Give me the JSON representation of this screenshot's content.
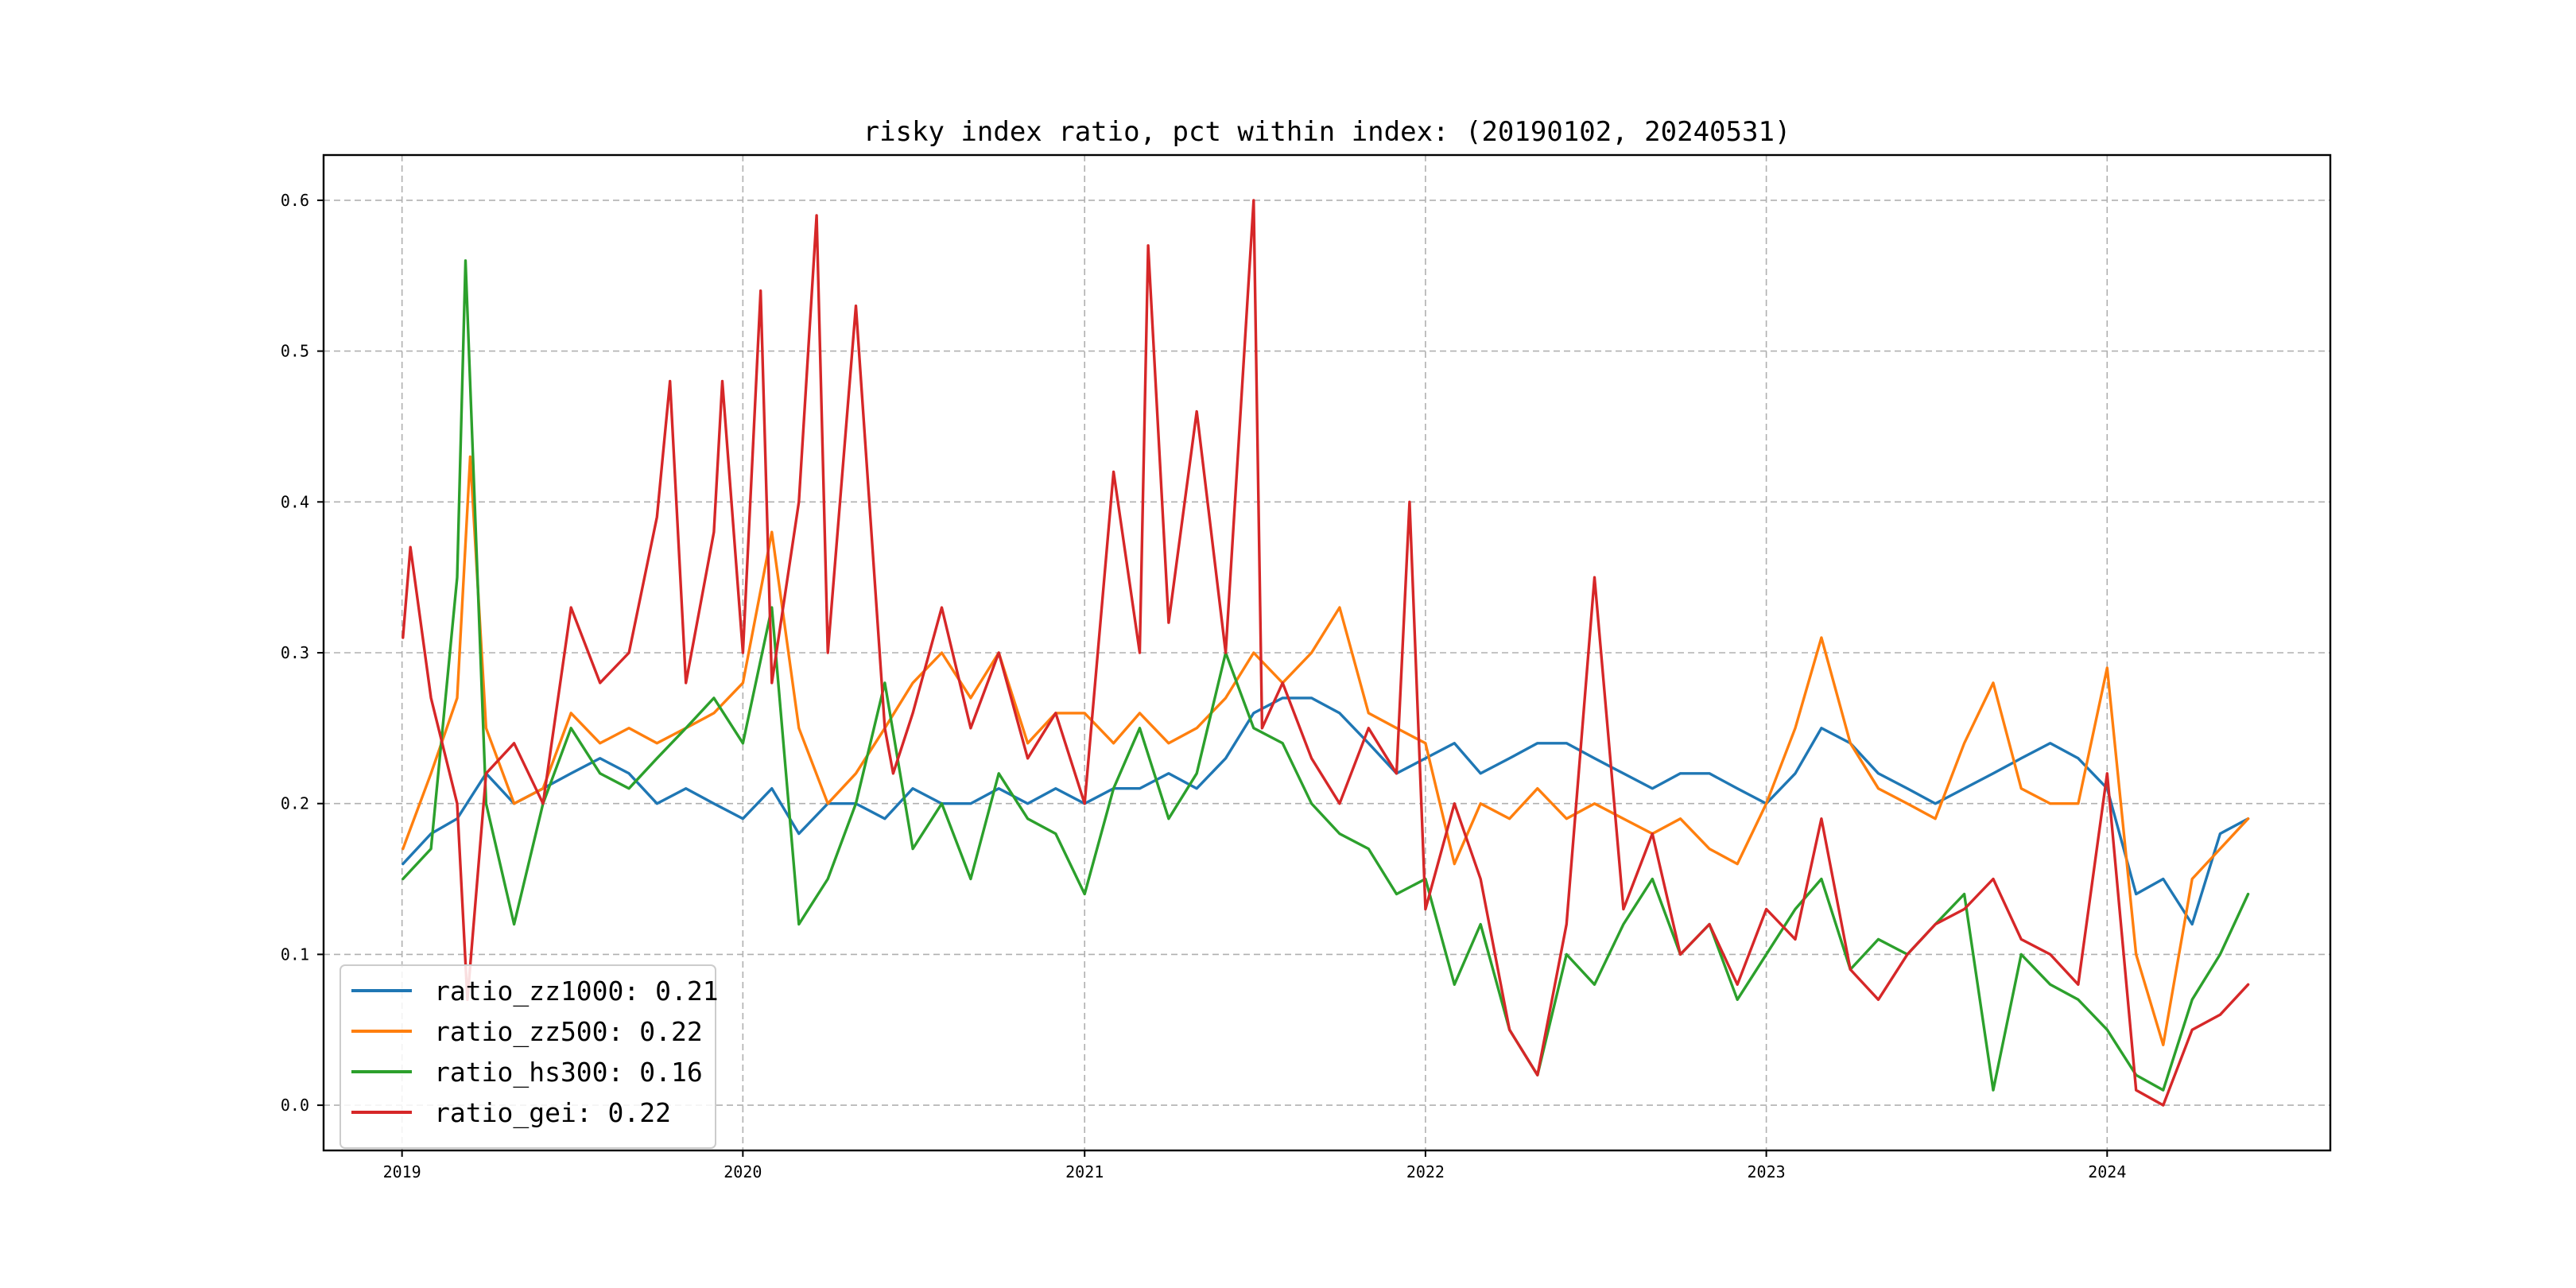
{
  "chart_data": {
    "type": "line",
    "title": "risky index ratio, pct within index: (20190102, 20240531)",
    "xlabel": "",
    "ylabel": "",
    "x_range": [
      "2019-01-02",
      "2024-05-31"
    ],
    "xlim": [
      "2018-10-09",
      "2024-08-27"
    ],
    "ylim": [
      -0.03,
      0.63
    ],
    "x_ticks": [
      {
        "date": "2019-01-01",
        "label": "2019"
      },
      {
        "date": "2020-01-01",
        "label": "2020"
      },
      {
        "date": "2021-01-01",
        "label": "2021"
      },
      {
        "date": "2022-01-01",
        "label": "2022"
      },
      {
        "date": "2023-01-01",
        "label": "2023"
      },
      {
        "date": "2024-01-01",
        "label": "2024"
      }
    ],
    "y_ticks": [
      {
        "value": 0.0,
        "label": "0.0"
      },
      {
        "value": 0.1,
        "label": "0.1"
      },
      {
        "value": 0.2,
        "label": "0.2"
      },
      {
        "value": 0.3,
        "label": "0.3"
      },
      {
        "value": 0.4,
        "label": "0.4"
      },
      {
        "value": 0.5,
        "label": "0.5"
      },
      {
        "value": 0.6,
        "label": "0.6"
      }
    ],
    "grid": true,
    "legend_position": "lower-left",
    "series": [
      {
        "name": "ratio_zz1000: 0.21",
        "color": "#1f77b4",
        "x": [
          "2019-01-02",
          "2019-02-01",
          "2019-03-01",
          "2019-04-01",
          "2019-05-01",
          "2019-06-01",
          "2019-07-01",
          "2019-08-01",
          "2019-09-01",
          "2019-10-01",
          "2019-11-01",
          "2019-12-01",
          "2020-01-01",
          "2020-02-01",
          "2020-03-01",
          "2020-04-01",
          "2020-05-01",
          "2020-06-01",
          "2020-07-01",
          "2020-08-01",
          "2020-09-01",
          "2020-10-01",
          "2020-11-01",
          "2020-12-01",
          "2021-01-01",
          "2021-02-01",
          "2021-03-01",
          "2021-04-01",
          "2021-05-01",
          "2021-06-01",
          "2021-07-01",
          "2021-08-01",
          "2021-09-01",
          "2021-10-01",
          "2021-11-01",
          "2021-12-01",
          "2022-01-01",
          "2022-02-01",
          "2022-03-01",
          "2022-04-01",
          "2022-05-01",
          "2022-06-01",
          "2022-07-01",
          "2022-08-01",
          "2022-09-01",
          "2022-10-01",
          "2022-11-01",
          "2022-12-01",
          "2023-01-01",
          "2023-02-01",
          "2023-03-01",
          "2023-04-01",
          "2023-05-01",
          "2023-06-01",
          "2023-07-01",
          "2023-08-01",
          "2023-09-01",
          "2023-10-01",
          "2023-11-01",
          "2023-12-01",
          "2024-01-01",
          "2024-02-01",
          "2024-03-01",
          "2024-04-01",
          "2024-05-01",
          "2024-05-31"
        ],
        "values": [
          0.16,
          0.18,
          0.19,
          0.22,
          0.2,
          0.21,
          0.22,
          0.23,
          0.22,
          0.2,
          0.21,
          0.2,
          0.19,
          0.21,
          0.18,
          0.2,
          0.2,
          0.19,
          0.21,
          0.2,
          0.2,
          0.21,
          0.2,
          0.21,
          0.2,
          0.21,
          0.21,
          0.22,
          0.21,
          0.23,
          0.26,
          0.27,
          0.27,
          0.26,
          0.24,
          0.22,
          0.23,
          0.24,
          0.22,
          0.23,
          0.24,
          0.24,
          0.23,
          0.22,
          0.21,
          0.22,
          0.22,
          0.21,
          0.2,
          0.22,
          0.25,
          0.24,
          0.22,
          0.21,
          0.2,
          0.21,
          0.22,
          0.23,
          0.24,
          0.23,
          0.21,
          0.14,
          0.15,
          0.12,
          0.18,
          0.19
        ]
      },
      {
        "name": "ratio_zz500: 0.22",
        "color": "#ff7f0e",
        "x": [
          "2019-01-02",
          "2019-02-01",
          "2019-03-01",
          "2019-03-15",
          "2019-04-01",
          "2019-05-01",
          "2019-06-01",
          "2019-07-01",
          "2019-08-01",
          "2019-09-01",
          "2019-10-01",
          "2019-11-01",
          "2019-12-01",
          "2020-01-01",
          "2020-02-01",
          "2020-03-01",
          "2020-04-01",
          "2020-05-01",
          "2020-06-01",
          "2020-07-01",
          "2020-08-01",
          "2020-09-01",
          "2020-10-01",
          "2020-11-01",
          "2020-12-01",
          "2021-01-01",
          "2021-02-01",
          "2021-03-01",
          "2021-04-01",
          "2021-05-01",
          "2021-06-01",
          "2021-07-01",
          "2021-08-01",
          "2021-09-01",
          "2021-10-01",
          "2021-11-01",
          "2021-12-01",
          "2022-01-01",
          "2022-02-01",
          "2022-03-01",
          "2022-04-01",
          "2022-05-01",
          "2022-06-01",
          "2022-07-01",
          "2022-08-01",
          "2022-09-01",
          "2022-10-01",
          "2022-11-01",
          "2022-12-01",
          "2023-01-01",
          "2023-02-01",
          "2023-03-01",
          "2023-04-01",
          "2023-05-01",
          "2023-06-01",
          "2023-07-01",
          "2023-08-01",
          "2023-09-01",
          "2023-10-01",
          "2023-11-01",
          "2023-12-01",
          "2024-01-01",
          "2024-02-01",
          "2024-03-01",
          "2024-04-01",
          "2024-05-01",
          "2024-05-31"
        ],
        "values": [
          0.17,
          0.22,
          0.27,
          0.43,
          0.25,
          0.2,
          0.21,
          0.26,
          0.24,
          0.25,
          0.24,
          0.25,
          0.26,
          0.28,
          0.38,
          0.25,
          0.2,
          0.22,
          0.25,
          0.28,
          0.3,
          0.27,
          0.3,
          0.24,
          0.26,
          0.26,
          0.24,
          0.26,
          0.24,
          0.25,
          0.27,
          0.3,
          0.28,
          0.3,
          0.33,
          0.26,
          0.25,
          0.24,
          0.16,
          0.2,
          0.19,
          0.21,
          0.19,
          0.2,
          0.19,
          0.18,
          0.19,
          0.17,
          0.16,
          0.2,
          0.25,
          0.31,
          0.24,
          0.21,
          0.2,
          0.19,
          0.24,
          0.28,
          0.21,
          0.2,
          0.2,
          0.29,
          0.1,
          0.04,
          0.15,
          0.17,
          0.19
        ]
      },
      {
        "name": "ratio_hs300: 0.16",
        "color": "#2ca02c",
        "x": [
          "2019-01-02",
          "2019-02-01",
          "2019-03-01",
          "2019-03-10",
          "2019-04-01",
          "2019-05-01",
          "2019-06-01",
          "2019-07-01",
          "2019-08-01",
          "2019-09-01",
          "2019-10-01",
          "2019-11-01",
          "2019-12-01",
          "2020-01-01",
          "2020-02-01",
          "2020-03-01",
          "2020-04-01",
          "2020-05-01",
          "2020-06-01",
          "2020-07-01",
          "2020-08-01",
          "2020-09-01",
          "2020-10-01",
          "2020-11-01",
          "2020-12-01",
          "2021-01-01",
          "2021-02-01",
          "2021-03-01",
          "2021-04-01",
          "2021-05-01",
          "2021-06-01",
          "2021-07-01",
          "2021-08-01",
          "2021-09-01",
          "2021-10-01",
          "2021-11-01",
          "2021-12-01",
          "2022-01-01",
          "2022-02-01",
          "2022-03-01",
          "2022-04-01",
          "2022-05-01",
          "2022-06-01",
          "2022-07-01",
          "2022-08-01",
          "2022-09-01",
          "2022-10-01",
          "2022-11-01",
          "2022-12-01",
          "2023-01-01",
          "2023-02-01",
          "2023-03-01",
          "2023-04-01",
          "2023-05-01",
          "2023-06-01",
          "2023-07-01",
          "2023-08-01",
          "2023-09-01",
          "2023-10-01",
          "2023-11-01",
          "2023-12-01",
          "2024-01-01",
          "2024-02-01",
          "2024-03-01",
          "2024-04-01",
          "2024-05-01",
          "2024-05-31"
        ],
        "values": [
          0.15,
          0.17,
          0.35,
          0.56,
          0.2,
          0.12,
          0.2,
          0.25,
          0.22,
          0.21,
          0.23,
          0.25,
          0.27,
          0.24,
          0.33,
          0.12,
          0.15,
          0.2,
          0.28,
          0.17,
          0.2,
          0.15,
          0.22,
          0.19,
          0.18,
          0.14,
          0.21,
          0.25,
          0.19,
          0.22,
          0.3,
          0.25,
          0.24,
          0.2,
          0.18,
          0.17,
          0.14,
          0.15,
          0.08,
          0.12,
          0.05,
          0.02,
          0.1,
          0.08,
          0.12,
          0.15,
          0.1,
          0.12,
          0.07,
          0.1,
          0.13,
          0.15,
          0.09,
          0.11,
          0.1,
          0.12,
          0.14,
          0.01,
          0.1,
          0.08,
          0.07,
          0.05,
          0.02,
          0.01,
          0.07,
          0.1,
          0.14
        ]
      },
      {
        "name": "ratio_gei: 0.22",
        "color": "#d62728",
        "x": [
          "2019-01-02",
          "2019-01-10",
          "2019-02-01",
          "2019-03-01",
          "2019-03-12",
          "2019-04-01",
          "2019-05-01",
          "2019-06-01",
          "2019-07-01",
          "2019-08-01",
          "2019-09-01",
          "2019-10-01",
          "2019-10-15",
          "2019-11-01",
          "2019-12-01",
          "2019-12-10",
          "2020-01-01",
          "2020-01-20",
          "2020-02-01",
          "2020-03-01",
          "2020-03-20",
          "2020-04-01",
          "2020-05-01",
          "2020-06-01",
          "2020-06-10",
          "2020-07-01",
          "2020-08-01",
          "2020-09-01",
          "2020-10-01",
          "2020-11-01",
          "2020-12-01",
          "2021-01-01",
          "2021-02-01",
          "2021-03-01",
          "2021-03-10",
          "2021-04-01",
          "2021-05-01",
          "2021-06-01",
          "2021-07-01",
          "2021-07-10",
          "2021-08-01",
          "2021-09-01",
          "2021-10-01",
          "2021-11-01",
          "2021-12-01",
          "2021-12-15",
          "2022-01-01",
          "2022-02-01",
          "2022-03-01",
          "2022-04-01",
          "2022-05-01",
          "2022-06-01",
          "2022-07-01",
          "2022-08-01",
          "2022-09-01",
          "2022-10-01",
          "2022-11-01",
          "2022-12-01",
          "2023-01-01",
          "2023-02-01",
          "2023-03-01",
          "2023-04-01",
          "2023-05-01",
          "2023-06-01",
          "2023-07-01",
          "2023-08-01",
          "2023-09-01",
          "2023-10-01",
          "2023-11-01",
          "2023-12-01",
          "2024-01-01",
          "2024-02-01",
          "2024-03-01",
          "2024-04-01",
          "2024-05-01",
          "2024-05-31"
        ],
        "values": [
          0.31,
          0.37,
          0.27,
          0.2,
          0.07,
          0.22,
          0.24,
          0.2,
          0.33,
          0.28,
          0.3,
          0.39,
          0.48,
          0.28,
          0.38,
          0.48,
          0.3,
          0.54,
          0.28,
          0.4,
          0.59,
          0.3,
          0.53,
          0.25,
          0.22,
          0.26,
          0.33,
          0.25,
          0.3,
          0.23,
          0.26,
          0.2,
          0.42,
          0.3,
          0.57,
          0.32,
          0.46,
          0.3,
          0.6,
          0.25,
          0.28,
          0.23,
          0.2,
          0.25,
          0.22,
          0.4,
          0.13,
          0.2,
          0.15,
          0.05,
          0.02,
          0.12,
          0.35,
          0.13,
          0.18,
          0.1,
          0.12,
          0.08,
          0.13,
          0.11,
          0.19,
          0.09,
          0.07,
          0.1,
          0.12,
          0.13,
          0.15,
          0.11,
          0.1,
          0.08,
          0.22,
          0.01,
          0.0,
          0.05,
          0.06,
          0.08
        ]
      }
    ]
  }
}
